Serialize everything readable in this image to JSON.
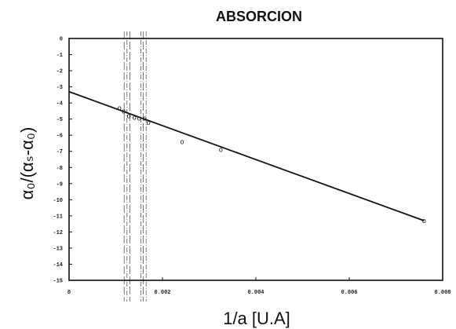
{
  "chart_data": {
    "type": "scatter",
    "title": "ABSORCION",
    "xlabel": "1/a [U.A]",
    "ylabel": "α₀/(αₛ-α₀)",
    "xlim": [
      0,
      0.008
    ],
    "ylim": [
      -15,
      0
    ],
    "x_ticks": [
      "0",
      "0.002",
      "0.004",
      "0.006",
      "0.008"
    ],
    "x_tick_values": [
      0,
      0.002,
      0.004,
      0.006,
      0.008
    ],
    "y_ticks": [
      "0",
      "-1",
      "-2",
      "-3",
      "-4",
      "-5",
      "-6",
      "-7",
      "-8",
      "-9",
      "-10",
      "-11",
      "-12",
      "-13",
      "-14",
      "-15"
    ],
    "y_tick_values": [
      0,
      -1,
      -2,
      -3,
      -4,
      -5,
      -6,
      -7,
      -8,
      -9,
      -10,
      -11,
      -12,
      -13,
      -14,
      -15
    ],
    "marker_symbol": "o",
    "series": [
      {
        "points": [
          {
            "x": 0.00108,
            "y": -4.3
          },
          {
            "x": 0.00117,
            "y": -4.5
          },
          {
            "x": 0.00128,
            "y": -4.8
          },
          {
            "x": 0.0014,
            "y": -4.9
          },
          {
            "x": 0.0015,
            "y": -4.95
          },
          {
            "x": 0.00162,
            "y": -4.95
          },
          {
            "x": 0.0017,
            "y": -5.2
          },
          {
            "x": 0.00242,
            "y": -6.4
          },
          {
            "x": 0.00325,
            "y": -6.9
          },
          {
            "x": 0.0076,
            "y": -11.3
          }
        ]
      }
    ],
    "fit_line": {
      "x": [
        0,
        0.0076
      ],
      "y": [
        -3.3,
        -11.3
      ]
    },
    "vertical_lines_x": [
      0.00118,
      0.00124,
      0.0013,
      0.00154,
      0.00159,
      0.00165
    ],
    "grid": false,
    "legend": "none"
  }
}
